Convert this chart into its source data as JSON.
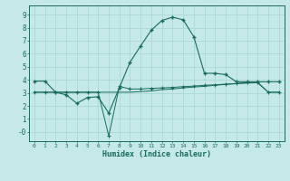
{
  "xlabel": "Humidex (Indice chaleur)",
  "bg_color": "#c5e8e8",
  "grid_color": "#a8d4d4",
  "line_color": "#1a6b5a",
  "xlim": [
    -0.5,
    23.5
  ],
  "ylim": [
    -0.7,
    9.7
  ],
  "xticks": [
    0,
    1,
    2,
    3,
    4,
    5,
    6,
    7,
    8,
    9,
    10,
    11,
    12,
    13,
    14,
    15,
    16,
    17,
    18,
    19,
    20,
    21,
    22,
    23
  ],
  "yticks": [
    0,
    1,
    2,
    3,
    4,
    5,
    6,
    7,
    8,
    9
  ],
  "ytick_labels": [
    "-0",
    "1",
    "2",
    "3",
    "4",
    "5",
    "6",
    "7",
    "8",
    "9"
  ],
  "line1_x": [
    0,
    1,
    2,
    3,
    4,
    5,
    6,
    7,
    8,
    9,
    10,
    11,
    12,
    13,
    14,
    15,
    16,
    17,
    18,
    19,
    20,
    21,
    22,
    23
  ],
  "line1_y": [
    3.9,
    3.9,
    3.05,
    2.85,
    2.2,
    2.65,
    2.7,
    1.45,
    3.4,
    5.35,
    6.6,
    7.8,
    8.55,
    8.8,
    8.6,
    7.3,
    4.5,
    4.5,
    4.4,
    3.85,
    3.85,
    3.85,
    3.85,
    3.85
  ],
  "line2_x": [
    0,
    1,
    2,
    3,
    4,
    5,
    6,
    7,
    8,
    9,
    10,
    11,
    12,
    13,
    14,
    15,
    16,
    17,
    18,
    19,
    20,
    21,
    22,
    23
  ],
  "line2_y": [
    3.05,
    3.05,
    3.05,
    3.05,
    3.05,
    3.05,
    3.05,
    3.05,
    3.05,
    3.05,
    3.1,
    3.15,
    3.25,
    3.3,
    3.38,
    3.45,
    3.5,
    3.58,
    3.65,
    3.7,
    3.75,
    3.78,
    3.05,
    3.05
  ],
  "line3_x": [
    0,
    1,
    2,
    3,
    4,
    5,
    6,
    7,
    8,
    9,
    10,
    11,
    12,
    13,
    14,
    15,
    16,
    17,
    18,
    19,
    20,
    21,
    22,
    23
  ],
  "line3_y": [
    3.05,
    3.05,
    3.05,
    3.05,
    3.05,
    3.05,
    3.05,
    -0.3,
    3.5,
    3.3,
    3.3,
    3.35,
    3.38,
    3.42,
    3.48,
    3.52,
    3.58,
    3.62,
    3.67,
    3.72,
    3.78,
    3.82,
    3.05,
    3.05
  ]
}
